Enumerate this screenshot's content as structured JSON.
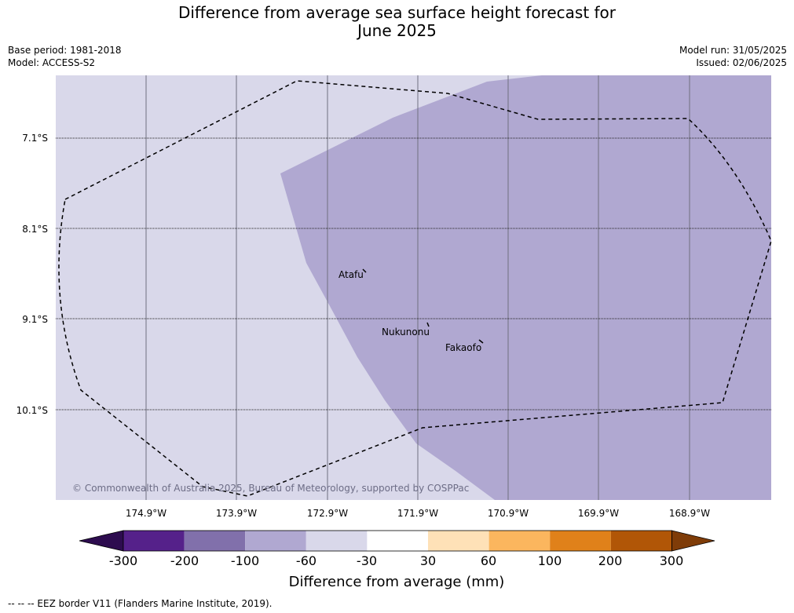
{
  "title_line1": "Difference from average sea surface height forecast for",
  "title_line2": "June 2025",
  "base_period": "Base period: 1981-2018",
  "model": "Model: ACCESS-S2",
  "model_run": "Model run: 31/05/2025",
  "issued": "Issued: 02/06/2025",
  "latitudes": [
    "7.1°S",
    "8.1°S",
    "9.1°S",
    "10.1°S"
  ],
  "longitudes": [
    "174.9°W",
    "173.9°W",
    "172.9°W",
    "171.9°W",
    "170.9°W",
    "169.9°W",
    "168.9°W"
  ],
  "places": [
    "Atafu",
    "Nukunonu",
    "Fakaofo"
  ],
  "watermark": "© Commonwealth of Australia 2025, Bureau of Meteorology, supported by COSPPac",
  "colorbar": {
    "ticks": [
      "-300",
      "-200",
      "-100",
      "-60",
      "-30",
      "30",
      "60",
      "100",
      "200",
      "300"
    ],
    "colors": [
      "#2d0c4f",
      "#55218a",
      "#8170ab",
      "#b0a8d1",
      "#d9d8ea",
      "#ffffff",
      "#fee1b7",
      "#fbb65e",
      "#e0811a",
      "#b15607",
      "#7f3c08"
    ],
    "title": "Difference from average (mm)"
  },
  "footer": "--  --  -- EEZ border V11 (Flanders Marine Institute, 2019).",
  "colors": {
    "light_region": "#d9d8ea",
    "dark_region": "#b0a8d1"
  }
}
